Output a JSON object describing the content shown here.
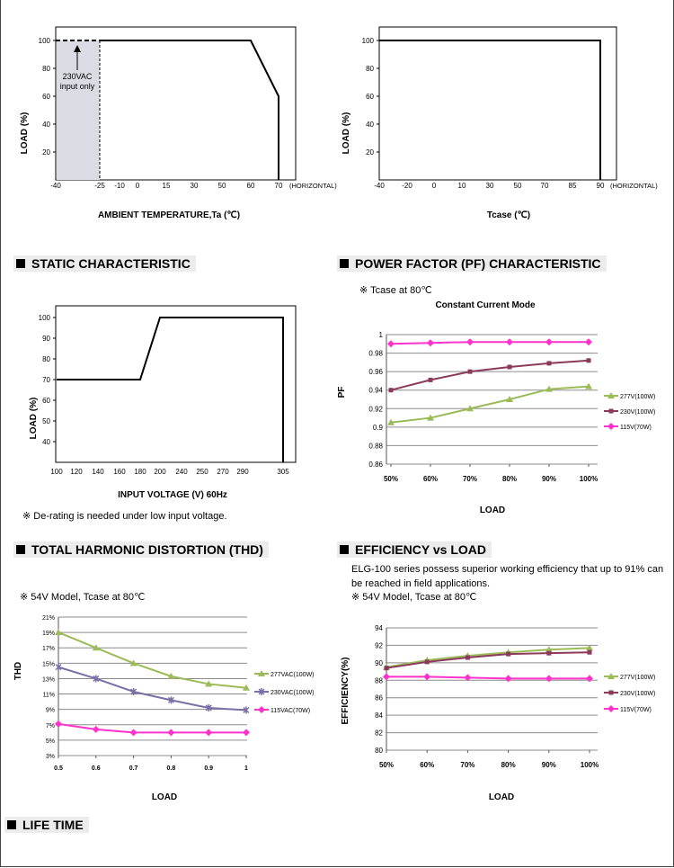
{
  "sections": {
    "static": "STATIC CHARACTERISTIC",
    "pf": "POWER FACTOR (PF) CHARACTERISTIC",
    "thd": "TOTAL HARMONIC DISTORTION (THD)",
    "eff": "EFFICIENCY vs LOAD",
    "life": "LIFE TIME"
  },
  "notes": {
    "pf_tcase": "※ Tcase at 80℃",
    "static_derate": "※ De-rating is needed under low input voltage.",
    "thd_model": "※ 54V Model, Tcase at 80℃",
    "eff_desc_1": "ELG-100 series possess superior working efficiency that up to 91% can",
    "eff_desc_2": "be reached in field applications.",
    "eff_model": "※ 54V Model, Tcase at 80℃"
  },
  "chart_data": [
    {
      "id": "ambient",
      "type": "line",
      "xlabel": "AMBIENT TEMPERATURE,Ta (℃)",
      "ylabel": "LOAD (%)",
      "x_ticks": [
        "-40",
        "-25",
        "-10",
        "0",
        "15",
        "30",
        "50",
        "60",
        "70"
      ],
      "x_suffix": "(HORIZONTAL)",
      "y_ticks": [
        20,
        40,
        60,
        80,
        100
      ],
      "ylim": [
        0,
        100
      ],
      "series": [
        {
          "x": [
            "-25",
            "60",
            "70",
            "70"
          ],
          "values": [
            100,
            100,
            60,
            0
          ]
        }
      ],
      "dashed_region": {
        "x": [
          "-40",
          "-25"
        ],
        "values": [
          100
        ]
      },
      "annotation": [
        "230VAC",
        "input only"
      ]
    },
    {
      "id": "tcase",
      "type": "line",
      "xlabel": "Tcase (℃)",
      "ylabel": "LOAD (%)",
      "x_ticks": [
        "-40",
        "-20",
        "0",
        "10",
        "30",
        "50",
        "70",
        "85",
        "90"
      ],
      "x_suffix": "(HORIZONTAL)",
      "y_ticks": [
        20,
        40,
        60,
        80,
        100
      ],
      "ylim": [
        0,
        100
      ],
      "series": [
        {
          "x": [
            "-40",
            "90",
            "90"
          ],
          "values": [
            100,
            100,
            0
          ]
        }
      ]
    },
    {
      "id": "static",
      "type": "line",
      "xlabel": "INPUT VOLTAGE (V) 60Hz",
      "ylabel": "LOAD (%)",
      "x_ticks": [
        "100",
        "120",
        "140",
        "160",
        "180",
        "200",
        "240",
        "250",
        "270",
        "290",
        "305"
      ],
      "y_ticks": [
        40,
        50,
        60,
        70,
        80,
        90,
        100
      ],
      "ylim": [
        30,
        100
      ],
      "series": [
        {
          "x": [
            "100",
            "180",
            "200",
            "305",
            "305"
          ],
          "values": [
            70,
            70,
            100,
            100,
            30
          ]
        }
      ]
    },
    {
      "id": "pf",
      "type": "line",
      "title": "Constant Current Mode",
      "xlabel": "LOAD",
      "ylabel": "PF",
      "categories": [
        "50%",
        "60%",
        "70%",
        "80%",
        "90%",
        "100%"
      ],
      "y_ticks": [
        "0.86",
        "0.88",
        "0.9",
        "0.92",
        "0.94",
        "0.96",
        "0.98",
        "1"
      ],
      "ylim": [
        0.86,
        1.0
      ],
      "series": [
        {
          "name": "277V(100W)",
          "color": "#9bbb59",
          "marker": "triangle",
          "values": [
            0.905,
            0.91,
            0.92,
            0.93,
            0.941,
            0.944
          ]
        },
        {
          "name": "230V(100W)",
          "color": "#8b3a5c",
          "marker": "square",
          "values": [
            0.94,
            0.951,
            0.96,
            0.965,
            0.969,
            0.972
          ]
        },
        {
          "name": "115V(70W)",
          "color": "#ff33cc",
          "marker": "diamond",
          "values": [
            0.99,
            0.991,
            0.992,
            0.992,
            0.992,
            0.992
          ]
        }
      ]
    },
    {
      "id": "thd",
      "type": "line",
      "xlabel": "LOAD",
      "ylabel": "THD",
      "categories": [
        "0.5",
        "0.6",
        "0.7",
        "0.8",
        "0.9",
        "1"
      ],
      "y_ticks": [
        "3%",
        "5%",
        "7%",
        "9%",
        "11%",
        "13%",
        "15%",
        "17%",
        "19%",
        "21%"
      ],
      "ylim": [
        3,
        21
      ],
      "series": [
        {
          "name": "277VAC(100W)",
          "color": "#9bbb59",
          "marker": "triangle",
          "values": [
            19.0,
            17.0,
            15.0,
            13.3,
            12.3,
            11.8
          ]
        },
        {
          "name": "230VAC(100W)",
          "color": "#7b6fa8",
          "marker": "x",
          "values": [
            14.5,
            13.0,
            11.3,
            10.2,
            9.2,
            8.9
          ]
        },
        {
          "name": "115VAC(70W)",
          "color": "#ff33cc",
          "marker": "diamond",
          "values": [
            7.1,
            6.4,
            6.0,
            6.0,
            6.0,
            6.0
          ]
        }
      ]
    },
    {
      "id": "eff",
      "type": "line",
      "xlabel": "LOAD",
      "ylabel": "EFFICIENCY(%)",
      "categories": [
        "50%",
        "60%",
        "70%",
        "80%",
        "90%",
        "100%"
      ],
      "y_ticks": [
        "80",
        "82",
        "84",
        "86",
        "88",
        "90",
        "92",
        "94"
      ],
      "ylim": [
        80,
        94
      ],
      "series": [
        {
          "name": "277V(100W)",
          "color": "#9bbb59",
          "marker": "triangle",
          "values": [
            89.5,
            90.3,
            90.8,
            91.2,
            91.5,
            91.7
          ]
        },
        {
          "name": "230V(100W)",
          "color": "#8b3a5c",
          "marker": "square",
          "values": [
            89.4,
            90.1,
            90.6,
            91.0,
            91.1,
            91.2
          ]
        },
        {
          "name": "115V(70W)",
          "color": "#ff33cc",
          "marker": "diamond",
          "values": [
            88.4,
            88.4,
            88.3,
            88.2,
            88.2,
            88.2
          ]
        }
      ]
    }
  ]
}
